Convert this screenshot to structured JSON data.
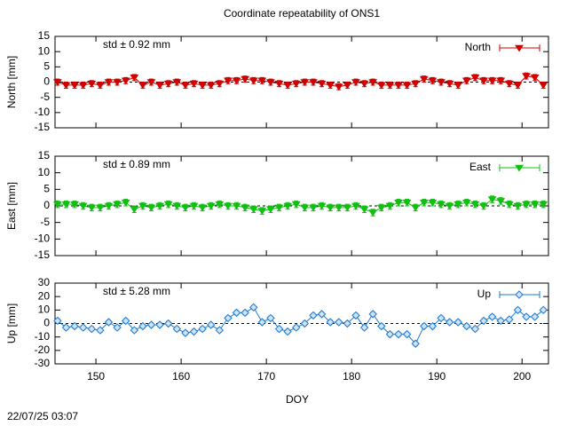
{
  "title": "Coordinate repeatability of ONS1",
  "timestamp": "22/07/25 03:07",
  "x_label": "DOY",
  "x": [
    145.5,
    146.5,
    147.5,
    148.5,
    149.5,
    150.5,
    151.5,
    152.5,
    153.5,
    154.5,
    155.5,
    156.5,
    157.5,
    158.5,
    159.5,
    160.5,
    161.5,
    162.5,
    163.5,
    164.5,
    165.5,
    166.5,
    167.5,
    168.5,
    169.5,
    170.5,
    171.5,
    172.5,
    173.5,
    174.5,
    175.5,
    176.5,
    177.5,
    178.5,
    179.5,
    180.5,
    181.5,
    182.5,
    183.5,
    184.5,
    185.5,
    186.5,
    187.5,
    188.5,
    189.5,
    190.5,
    191.5,
    192.5,
    193.5,
    194.5,
    195.5,
    196.5,
    197.5,
    198.5,
    199.5,
    200.5,
    201.5,
    202.5
  ],
  "xlim": [
    145.2,
    203.1
  ],
  "xticks": [
    150,
    160,
    170,
    180,
    190,
    200
  ],
  "chart_data": [
    {
      "type": "line",
      "y_label": "North [mm]",
      "annotation": "std ± 0.92 mm",
      "ylim": [
        -15,
        15
      ],
      "yticks": [
        15,
        10,
        5,
        0,
        -5,
        -10,
        -15
      ],
      "series": [
        {
          "name": "North",
          "color": "#d00000",
          "marker": "triangle-down",
          "error": 1,
          "values": [
            0,
            -1,
            -1,
            -1,
            -0.5,
            -1,
            0,
            0,
            0.5,
            1.5,
            -1,
            0,
            -1,
            -0.5,
            0,
            -1,
            -0.5,
            -1,
            -1,
            -0.5,
            0.5,
            0.5,
            1,
            0.5,
            0.5,
            0,
            -0.5,
            -1,
            -0.5,
            0,
            0,
            -0.5,
            -1,
            -1.5,
            -1,
            0,
            -0.5,
            0,
            -1,
            -1,
            -1,
            -1,
            -0.5,
            1,
            0.5,
            0,
            -0.5,
            -1,
            0.5,
            1.5,
            0.5,
            0.5,
            0.5,
            -0.5,
            -1,
            2,
            1.5,
            -1
          ]
        }
      ]
    },
    {
      "type": "line",
      "y_label": "East [mm]",
      "annotation": "std ± 0.89 mm",
      "ylim": [
        -15,
        15
      ],
      "yticks": [
        15,
        10,
        5,
        0,
        -5,
        -10,
        -15
      ],
      "series": [
        {
          "name": "East",
          "color": "#10c010",
          "marker": "triangle-down",
          "error": 1,
          "values": [
            0.5,
            0.5,
            0.5,
            0,
            -0.5,
            -0.5,
            0,
            0.5,
            1,
            -1,
            0,
            -0.5,
            0,
            0.5,
            0,
            -0.5,
            0,
            -0.5,
            0,
            0.5,
            0,
            0,
            -0.5,
            -1,
            -1.5,
            -1,
            -0.5,
            0,
            0.5,
            -0.5,
            -0.5,
            0,
            -0.5,
            -0.5,
            -0.5,
            0,
            -1,
            -2,
            -0.5,
            0,
            1,
            1,
            -0.5,
            1,
            1,
            0.5,
            0,
            0.5,
            1,
            0.5,
            0,
            2,
            1.5,
            0.5,
            0,
            0.5,
            0.5,
            0.5
          ]
        }
      ]
    },
    {
      "type": "line",
      "y_label": "Up [mm]",
      "annotation": "std ± 5.28 mm",
      "ylim": [
        -30,
        30
      ],
      "yticks": [
        30,
        20,
        10,
        0,
        -10,
        -20,
        -30
      ],
      "series": [
        {
          "name": "Up",
          "color": "#1a78d0",
          "marker": "diamond",
          "error": 1.5,
          "values": [
            2,
            -3,
            -2,
            -3,
            -4,
            -5,
            1,
            -3,
            2,
            -5,
            -2,
            -1,
            -1,
            0,
            -4,
            -7,
            -6,
            -4,
            -1,
            -5,
            4,
            8,
            8,
            12,
            1,
            4,
            -4,
            -6,
            -3,
            0,
            6,
            7,
            1,
            1,
            0,
            6,
            -3,
            7,
            -2,
            -8,
            -8,
            -8,
            -15,
            -2,
            -2,
            4,
            1,
            1,
            -2,
            -4,
            2,
            5,
            2,
            3,
            10,
            5,
            5,
            10
          ]
        }
      ]
    }
  ]
}
